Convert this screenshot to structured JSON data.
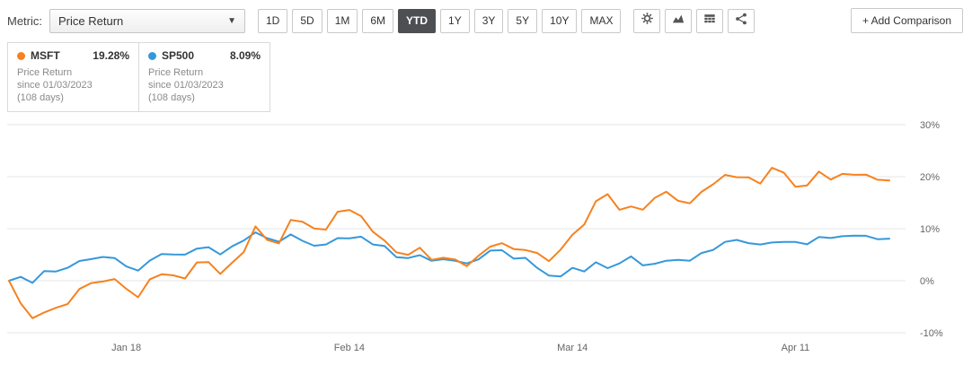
{
  "toolbar": {
    "metric_label": "Metric:",
    "metric_value": "Price Return",
    "ranges": [
      "1D",
      "5D",
      "1M",
      "6M",
      "YTD",
      "1Y",
      "3Y",
      "5Y",
      "10Y",
      "MAX"
    ],
    "active_range": "YTD",
    "icons": [
      "settings-icon",
      "chart-type-icon",
      "data-table-icon",
      "share-icon"
    ],
    "add_comparison_label": "+ Add Comparison"
  },
  "legend": [
    {
      "ticker": "MSFT",
      "value": "19.28%",
      "metric": "Price Return",
      "since": "since 01/03/2023",
      "duration": "(108 days)",
      "color": "#f6821f"
    },
    {
      "ticker": "SP500",
      "value": "8.09%",
      "metric": "Price Return",
      "since": "since 01/03/2023",
      "duration": "(108 days)",
      "color": "#3598db"
    }
  ],
  "chart_data": {
    "type": "line",
    "title": "",
    "xlabel": "",
    "ylabel": "Price Return (%)",
    "ylim": [
      -10,
      30
    ],
    "grid": true,
    "legend_position": "top-left",
    "x": [
      "01/03",
      "01/04",
      "01/05",
      "01/06",
      "01/09",
      "01/10",
      "01/11",
      "01/12",
      "01/13",
      "01/17",
      "01/18",
      "01/19",
      "01/20",
      "01/23",
      "01/24",
      "01/25",
      "01/26",
      "01/27",
      "01/30",
      "01/31",
      "02/01",
      "02/02",
      "02/03",
      "02/06",
      "02/07",
      "02/08",
      "02/09",
      "02/10",
      "02/13",
      "02/14",
      "02/15",
      "02/16",
      "02/17",
      "02/21",
      "02/22",
      "02/23",
      "02/24",
      "02/27",
      "02/28",
      "03/01",
      "03/02",
      "03/03",
      "03/06",
      "03/07",
      "03/08",
      "03/09",
      "03/10",
      "03/13",
      "03/14",
      "03/15",
      "03/16",
      "03/17",
      "03/20",
      "03/21",
      "03/22",
      "03/23",
      "03/24",
      "03/27",
      "03/28",
      "03/29",
      "03/30",
      "03/31",
      "04/03",
      "04/04",
      "04/05",
      "04/06",
      "04/10",
      "04/11",
      "04/12",
      "04/13",
      "04/14",
      "04/17",
      "04/18",
      "04/19",
      "04/20",
      "04/21"
    ],
    "series": [
      {
        "name": "MSFT",
        "color": "#f6821f",
        "values": [
          0,
          -4.37,
          -7.21,
          -6.11,
          -5.2,
          -4.48,
          -1.59,
          -0.45,
          -0.15,
          0.32,
          -1.57,
          -3.19,
          0.27,
          1.25,
          1.03,
          0.43,
          3.51,
          3.58,
          1.31,
          3.44,
          5.5,
          10.44,
          7.83,
          7.18,
          11.68,
          11.33,
          10.03,
          9.82,
          13.25,
          13.6,
          12.41,
          9.42,
          7.71,
          5.46,
          4.98,
          6.34,
          4.02,
          4.42,
          4.11,
          2.79,
          4.81,
          6.56,
          7.22,
          6.08,
          5.89,
          5.32,
          3.76,
          5.99,
          8.85,
          10.79,
          15.28,
          16.63,
          13.63,
          14.27,
          13.65,
          15.89,
          17.11,
          15.36,
          14.88,
          17.08,
          18.56,
          20.34,
          19.89,
          19.87,
          18.68,
          21.71,
          20.79,
          18.05,
          18.33,
          20.98,
          19.44,
          20.54,
          20.36,
          20.4,
          19.42,
          19.28
        ]
      },
      {
        "name": "SP500",
        "color": "#3598db",
        "values": [
          0,
          0.75,
          -0.42,
          1.86,
          1.78,
          2.49,
          3.8,
          4.16,
          4.57,
          4.36,
          2.74,
          1.95,
          3.88,
          5.12,
          5.04,
          5.02,
          6.18,
          6.44,
          5.06,
          6.6,
          7.72,
          9.3,
          8.17,
          7.5,
          8.89,
          7.68,
          6.73,
          6.96,
          8.19,
          8.16,
          8.46,
          6.96,
          6.67,
          4.53,
          4.36,
          4.92,
          3.82,
          4.13,
          3.82,
          3.33,
          4.11,
          5.79,
          5.86,
          4.24,
          4.39,
          2.46,
          0.98,
          0.83,
          2.49,
          1.77,
          3.56,
          2.42,
          3.33,
          4.67,
          2.95,
          3.26,
          3.84,
          4.01,
          3.85,
          5.33,
          5.93,
          7.46,
          7.85,
          7.23,
          6.96,
          7.34,
          7.45,
          7.45,
          7.0,
          8.42,
          8.2,
          8.56,
          8.65,
          8.64,
          7.99,
          8.09
        ]
      }
    ],
    "y_ticks": [
      {
        "value": 30,
        "label": "30%"
      },
      {
        "value": 20,
        "label": "20%"
      },
      {
        "value": 10,
        "label": "10%"
      },
      {
        "value": 0,
        "label": "0%"
      },
      {
        "value": -10,
        "label": "-10%"
      }
    ],
    "x_ticks": [
      {
        "index": 10,
        "label": "Jan 18"
      },
      {
        "index": 29,
        "label": "Feb 14"
      },
      {
        "index": 48,
        "label": "Mar 14"
      },
      {
        "index": 67,
        "label": "Apr 11"
      }
    ]
  }
}
